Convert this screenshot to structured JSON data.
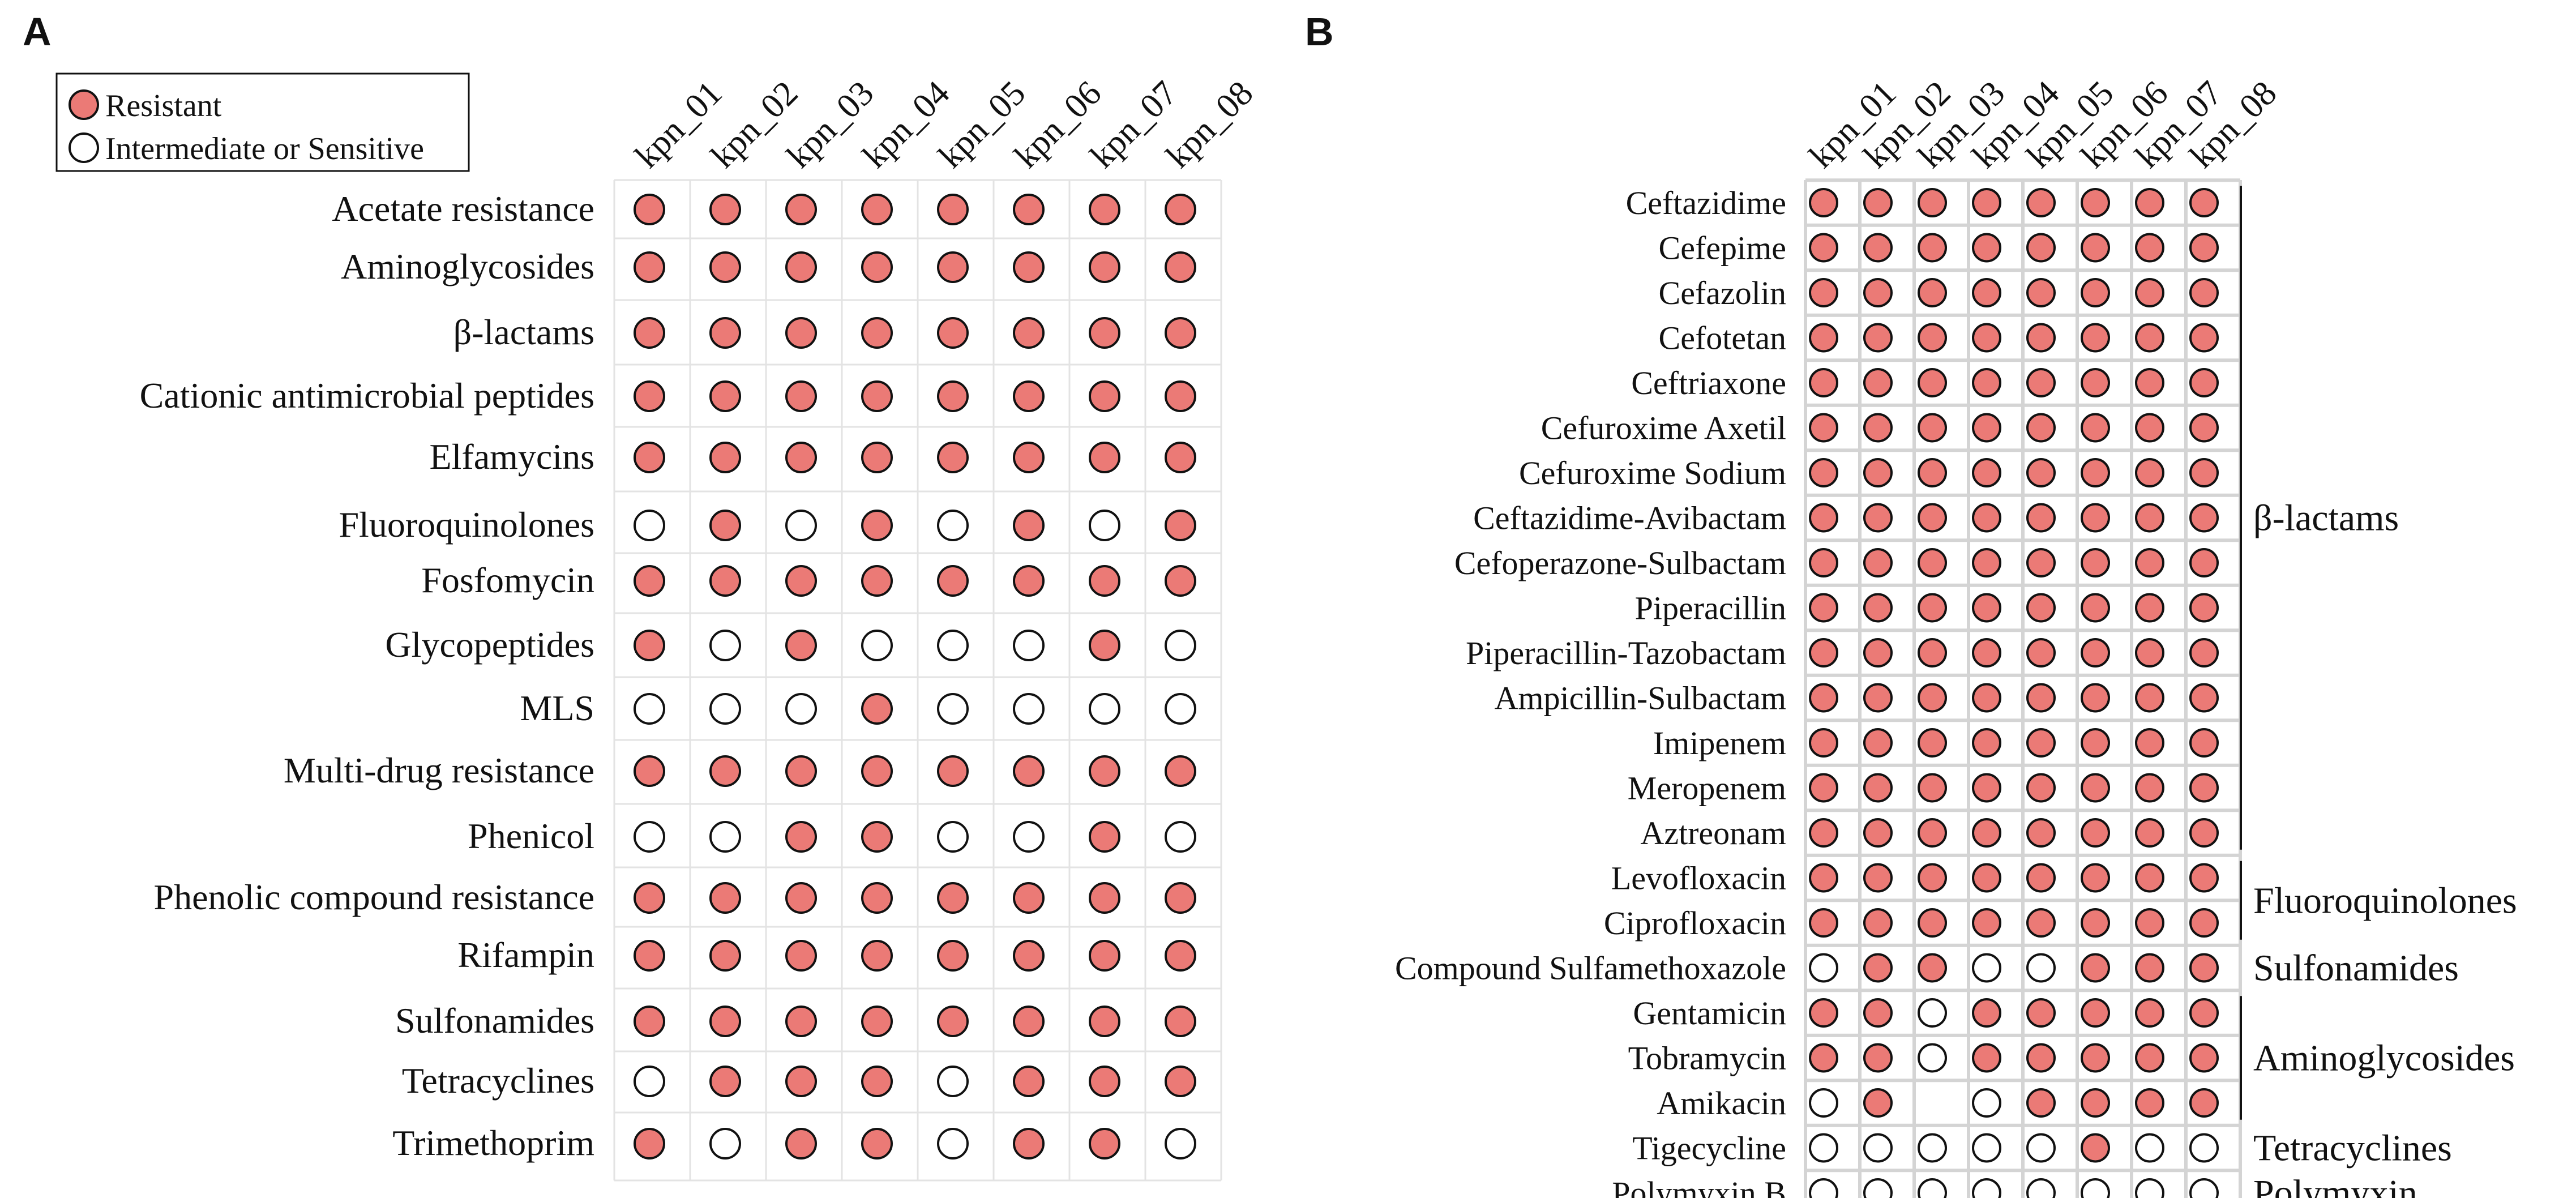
{
  "colors": {
    "resistant": "#EB7A76",
    "sensitive": "#FFFFFF",
    "stroke": "#111111",
    "grid_a": "#E3E3E3",
    "grid_b": "#D4D4D4"
  },
  "chart_data": [
    {
      "type": "table",
      "panel": "A",
      "title": "A",
      "legend": {
        "position": "top-left",
        "items": [
          {
            "label": "Resistant",
            "state": "R"
          },
          {
            "label": "Intermediate or Sensitive",
            "state": "S"
          }
        ]
      },
      "columns": [
        "kpn_01",
        "kpn_02",
        "kpn_03",
        "kpn_04",
        "kpn_05",
        "kpn_06",
        "kpn_07",
        "kpn_08"
      ],
      "rows": [
        {
          "label": "Acetate resistance",
          "values": [
            "R",
            "R",
            "R",
            "R",
            "R",
            "R",
            "R",
            "R"
          ]
        },
        {
          "label": "Aminoglycosides",
          "values": [
            "R",
            "R",
            "R",
            "R",
            "R",
            "R",
            "R",
            "R"
          ]
        },
        {
          "label": "β-lactams",
          "values": [
            "R",
            "R",
            "R",
            "R",
            "R",
            "R",
            "R",
            "R"
          ]
        },
        {
          "label": "Cationic antimicrobial peptides",
          "values": [
            "R",
            "R",
            "R",
            "R",
            "R",
            "R",
            "R",
            "R"
          ]
        },
        {
          "label": "Elfamycins",
          "values": [
            "R",
            "R",
            "R",
            "R",
            "R",
            "R",
            "R",
            "R"
          ]
        },
        {
          "label": "Fluoroquinolones",
          "values": [
            "S",
            "R",
            "S",
            "R",
            "S",
            "R",
            "S",
            "R"
          ]
        },
        {
          "label": "Fosfomycin",
          "values": [
            "R",
            "R",
            "R",
            "R",
            "R",
            "R",
            "R",
            "R"
          ]
        },
        {
          "label": "Glycopeptides",
          "values": [
            "R",
            "S",
            "R",
            "S",
            "S",
            "S",
            "R",
            "S"
          ]
        },
        {
          "label": "MLS",
          "values": [
            "S",
            "S",
            "S",
            "R",
            "S",
            "S",
            "S",
            "S"
          ]
        },
        {
          "label": "Multi-drug resistance",
          "values": [
            "R",
            "R",
            "R",
            "R",
            "R",
            "R",
            "R",
            "R"
          ]
        },
        {
          "label": "Phenicol",
          "values": [
            "S",
            "S",
            "R",
            "R",
            "S",
            "S",
            "R",
            "S"
          ]
        },
        {
          "label": "Phenolic compound resistance",
          "values": [
            "R",
            "R",
            "R",
            "R",
            "R",
            "R",
            "R",
            "R"
          ]
        },
        {
          "label": "Rifampin",
          "values": [
            "R",
            "R",
            "R",
            "R",
            "R",
            "R",
            "R",
            "R"
          ]
        },
        {
          "label": "Sulfonamides",
          "values": [
            "R",
            "R",
            "R",
            "R",
            "R",
            "R",
            "R",
            "R"
          ]
        },
        {
          "label": "Tetracyclines",
          "values": [
            "S",
            "R",
            "R",
            "R",
            "S",
            "R",
            "R",
            "R"
          ]
        },
        {
          "label": "Trimethoprim",
          "values": [
            "R",
            "S",
            "R",
            "R",
            "S",
            "R",
            "R",
            "S"
          ]
        }
      ]
    },
    {
      "type": "table",
      "panel": "B",
      "title": "B",
      "columns": [
        "kpn_01",
        "kpn_02",
        "kpn_03",
        "kpn_04",
        "kpn_05",
        "kpn_06",
        "kpn_07",
        "kpn_08"
      ],
      "rows": [
        {
          "label": "Ceftazidime",
          "values": [
            "R",
            "R",
            "R",
            "R",
            "R",
            "R",
            "R",
            "R"
          ]
        },
        {
          "label": "Cefepime",
          "values": [
            "R",
            "R",
            "R",
            "R",
            "R",
            "R",
            "R",
            "R"
          ]
        },
        {
          "label": "Cefazolin",
          "values": [
            "R",
            "R",
            "R",
            "R",
            "R",
            "R",
            "R",
            "R"
          ]
        },
        {
          "label": "Cefotetan",
          "values": [
            "R",
            "R",
            "R",
            "R",
            "R",
            "R",
            "R",
            "R"
          ]
        },
        {
          "label": "Ceftriaxone",
          "values": [
            "R",
            "R",
            "R",
            "R",
            "R",
            "R",
            "R",
            "R"
          ]
        },
        {
          "label": "Cefuroxime Axetil",
          "values": [
            "R",
            "R",
            "R",
            "R",
            "R",
            "R",
            "R",
            "R"
          ]
        },
        {
          "label": "Cefuroxime Sodium",
          "values": [
            "R",
            "R",
            "R",
            "R",
            "R",
            "R",
            "R",
            "R"
          ]
        },
        {
          "label": "Ceftazidime-Avibactam",
          "values": [
            "R",
            "R",
            "R",
            "R",
            "R",
            "R",
            "R",
            "R"
          ]
        },
        {
          "label": "Cefoperazone-Sulbactam",
          "values": [
            "R",
            "R",
            "R",
            "R",
            "R",
            "R",
            "R",
            "R"
          ]
        },
        {
          "label": "Piperacillin",
          "values": [
            "R",
            "R",
            "R",
            "R",
            "R",
            "R",
            "R",
            "R"
          ]
        },
        {
          "label": "Piperacillin-Tazobactam",
          "values": [
            "R",
            "R",
            "R",
            "R",
            "R",
            "R",
            "R",
            "R"
          ]
        },
        {
          "label": "Ampicillin-Sulbactam",
          "values": [
            "R",
            "R",
            "R",
            "R",
            "R",
            "R",
            "R",
            "R"
          ]
        },
        {
          "label": "Imipenem",
          "values": [
            "R",
            "R",
            "R",
            "R",
            "R",
            "R",
            "R",
            "R"
          ]
        },
        {
          "label": "Meropenem",
          "values": [
            "R",
            "R",
            "R",
            "R",
            "R",
            "R",
            "R",
            "R"
          ]
        },
        {
          "label": "Aztreonam",
          "values": [
            "R",
            "R",
            "R",
            "R",
            "R",
            "R",
            "R",
            "R"
          ]
        },
        {
          "label": "Levofloxacin",
          "values": [
            "R",
            "R",
            "R",
            "R",
            "R",
            "R",
            "R",
            "R"
          ]
        },
        {
          "label": "Ciprofloxacin",
          "values": [
            "R",
            "R",
            "R",
            "R",
            "R",
            "R",
            "R",
            "R"
          ]
        },
        {
          "label": "Compound Sulfamethoxazole",
          "values": [
            "S",
            "R",
            "R",
            "S",
            "S",
            "R",
            "R",
            "R"
          ]
        },
        {
          "label": "Gentamicin",
          "values": [
            "R",
            "R",
            "S",
            "R",
            "R",
            "R",
            "R",
            "R"
          ]
        },
        {
          "label": "Tobramycin",
          "values": [
            "R",
            "R",
            "S",
            "R",
            "R",
            "R",
            "R",
            "R"
          ]
        },
        {
          "label": "Amikacin",
          "values": [
            "S",
            "R",
            null,
            "S",
            "R",
            "R",
            "R",
            "R"
          ]
        },
        {
          "label": "Tigecycline",
          "values": [
            "S",
            "S",
            "S",
            "S",
            "S",
            "R",
            "S",
            "S"
          ]
        },
        {
          "label": "Polymyxin B",
          "values": [
            "S",
            "S",
            "S",
            "S",
            "S",
            "S",
            "S",
            "S"
          ]
        }
      ],
      "groups": [
        {
          "label": "β-lactams",
          "from": 0,
          "to": 14,
          "bracket": true
        },
        {
          "label": "Fluoroquinolones",
          "from": 15,
          "to": 16,
          "bracket": true
        },
        {
          "label": "Sulfonamides",
          "from": 17,
          "to": 17,
          "bracket": false
        },
        {
          "label": "Aminoglycosides",
          "from": 18,
          "to": 20,
          "bracket": true
        },
        {
          "label": "Tetracyclines",
          "from": 21,
          "to": 21,
          "bracket": false
        },
        {
          "label": "Polymyxin",
          "from": 22,
          "to": 22,
          "bracket": false
        }
      ]
    }
  ]
}
